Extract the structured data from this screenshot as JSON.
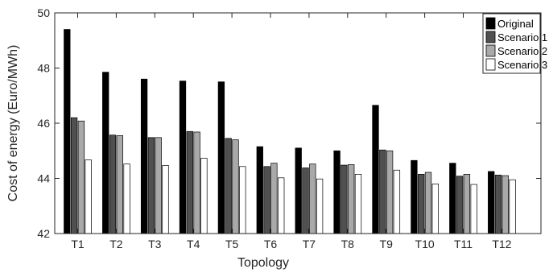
{
  "chart_data": {
    "type": "bar",
    "title": "",
    "xlabel": "Topology",
    "ylabel": "Cost of energy (Euro/MWh)",
    "ylim": [
      42,
      50
    ],
    "yticks": [
      42,
      44,
      46,
      48,
      50
    ],
    "grid": false,
    "legend_position": "top-right",
    "categories": [
      "T1",
      "T2",
      "T3",
      "T4",
      "T5",
      "T6",
      "T7",
      "T8",
      "T9",
      "T10",
      "T11",
      "T12"
    ],
    "series": [
      {
        "name": "Original",
        "color": "#000000",
        "values": [
          49.4,
          47.85,
          47.6,
          47.53,
          47.5,
          45.15,
          45.1,
          45.0,
          46.65,
          44.65,
          44.55,
          44.25
        ]
      },
      {
        "name": "Scenario 1",
        "color": "#505050",
        "values": [
          46.2,
          45.57,
          45.48,
          45.7,
          45.45,
          44.43,
          44.38,
          44.48,
          45.03,
          44.15,
          44.08,
          44.12
        ]
      },
      {
        "name": "Scenario 2",
        "color": "#a9a9a9",
        "values": [
          46.08,
          45.55,
          45.48,
          45.68,
          45.4,
          44.55,
          44.52,
          44.5,
          45.0,
          44.22,
          44.15,
          44.1
        ]
      },
      {
        "name": "Scenario 3",
        "color": "#ffffff",
        "values": [
          44.67,
          44.52,
          44.47,
          44.73,
          44.43,
          44.02,
          43.98,
          44.15,
          44.3,
          43.8,
          43.78,
          43.95
        ]
      }
    ]
  }
}
